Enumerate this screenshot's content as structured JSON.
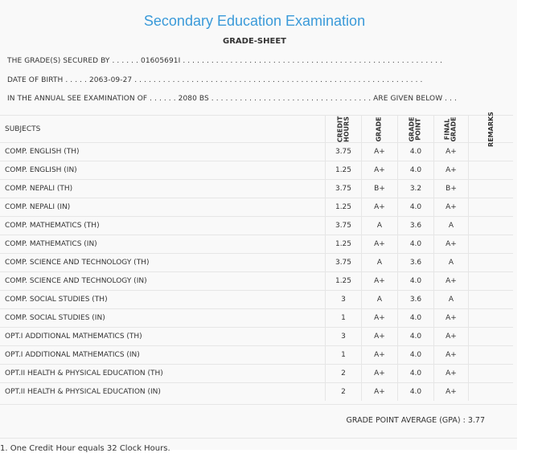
{
  "title": "Secondary Education Examination",
  "subtitle": "GRADE-SHEET",
  "lines": [
    "THE GRADE(S) SECURED BY . . . . . . 01605691I . . . . . . . . . . . . . . . . . . . . . . . . . . . . . . . . . . . . . . . . . . . . . . . . . . . . . . .",
    "DATE OF BIRTH . . . . . 2063-09-27 . . . . . . . . . . . . . . . . . . . . . . . . . . . . . . . . . . . . . . . . . . . . . . . . . . . . . . . . . . . . .",
    "IN THE ANNUAL SEE EXAMINATION OF . . . . . . 2080 BS . . . . . . . . . . . . . . . . . . . . . . . . . . . . . . . . . . ARE GIVEN BELOW . . ."
  ],
  "headers": [
    "SUBJECTS",
    "CREDIT\nHOURS",
    "GRADE",
    "GRADE\nPOINT",
    "FINAL\nGRADE",
    "REMARKS"
  ],
  "rows": [
    [
      "COMP. ENGLISH (TH)",
      "3.75",
      "A+",
      "4.0",
      "A+"
    ],
    [
      "COMP. ENGLISH (IN)",
      "1.25",
      "A+",
      "4.0",
      "A+"
    ],
    [
      "COMP. NEPALI (TH)",
      "3.75",
      "B+",
      "3.2",
      "B+"
    ],
    [
      "COMP. NEPALI (IN)",
      "1.25",
      "A+",
      "4.0",
      "A+"
    ],
    [
      "COMP. MATHEMATICS (TH)",
      "3.75",
      "A",
      "3.6",
      "A"
    ],
    [
      "COMP. MATHEMATICS (IN)",
      "1.25",
      "A+",
      "4.0",
      "A+"
    ],
    [
      "COMP. SCIENCE AND TECHNOLOGY (TH)",
      "3.75",
      "A",
      "3.6",
      "A"
    ],
    [
      "COMP. SCIENCE AND TECHNOLOGY (IN)",
      "1.25",
      "A+",
      "4.0",
      "A+"
    ],
    [
      "COMP. SOCIAL STUDIES (TH)",
      "3",
      "A",
      "3.6",
      "A"
    ],
    [
      "COMP. SOCIAL STUDIES (IN)",
      "1",
      "A+",
      "4.0",
      "A+"
    ],
    [
      "OPT.I ADDITIONAL MATHEMATICS (TH)",
      "3",
      "A+",
      "4.0",
      "A+"
    ],
    [
      "OPT.I ADDITIONAL MATHEMATICS (IN)",
      "1",
      "A+",
      "4.0",
      "A+"
    ],
    [
      "OPT.II HEALTH & PHYSICAL EDUCATION (TH)",
      "2",
      "A+",
      "4.0",
      "A+"
    ],
    [
      "OPT.II HEALTH & PHYSICAL EDUCATION (IN)",
      "2",
      "A+",
      "4.0",
      "A+"
    ]
  ],
  "gpa": "GRADE POINT AVERAGE (GPA) : 3.77",
  "footnote": "1. One Credit Hour equals 32 Clock Hours."
}
